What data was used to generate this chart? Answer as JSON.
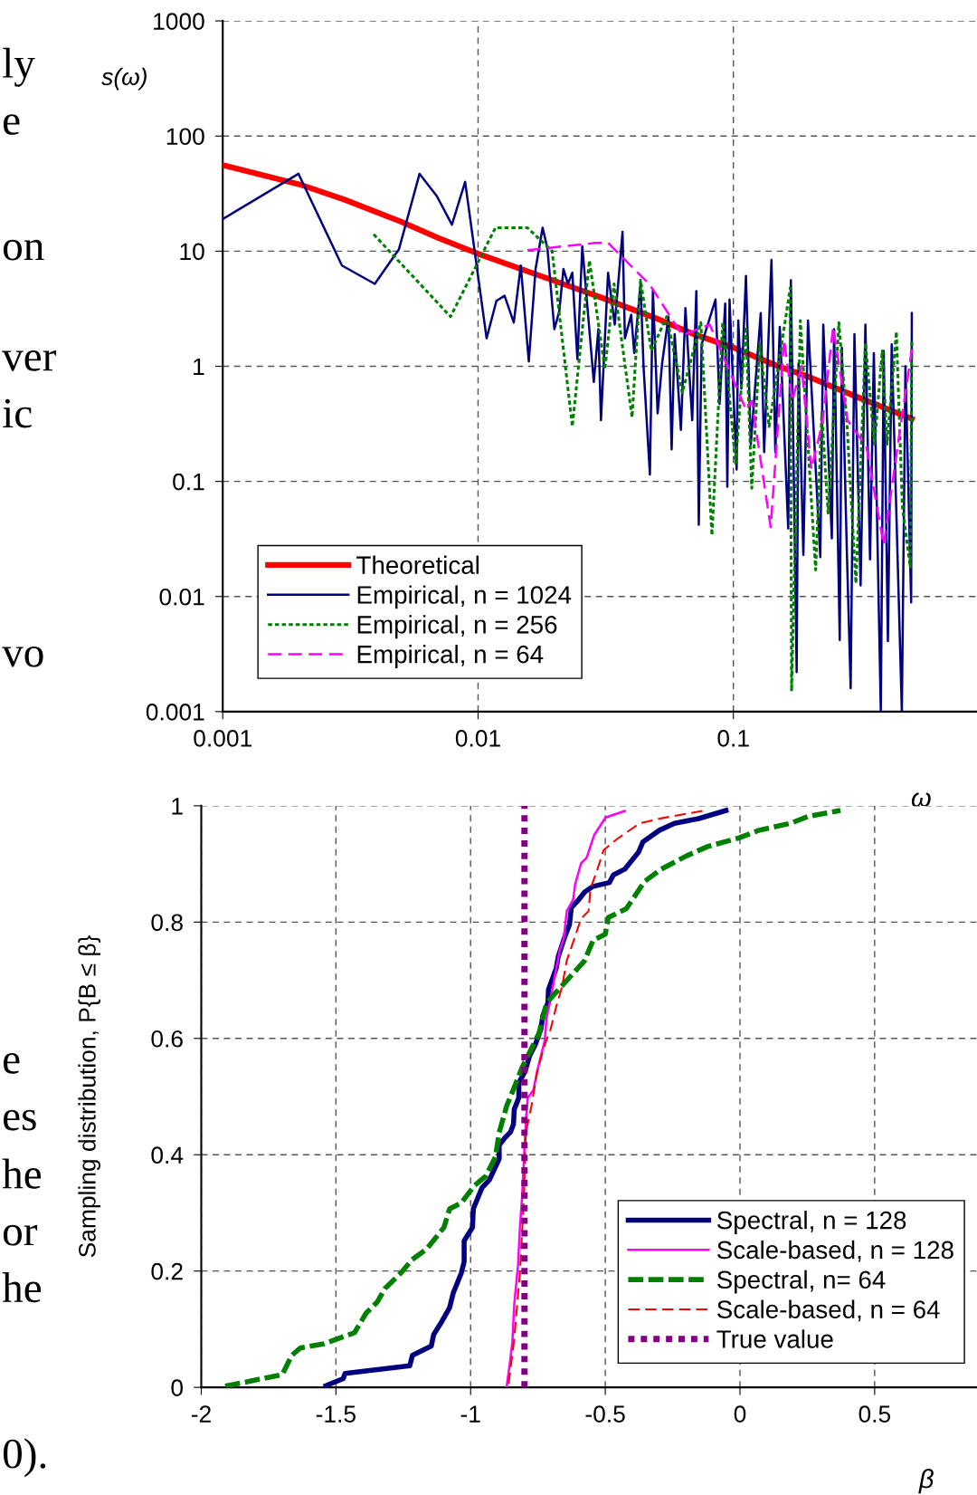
{
  "chart_data": [
    {
      "type": "line",
      "xlabel": "ω",
      "ylabel": "s(ω)",
      "log": "xy",
      "xlim": [
        0.001,
        0.9
      ],
      "ylim": [
        0.001,
        1000
      ],
      "xticks": [
        0.001,
        0.01,
        0.1
      ],
      "yticks": [
        0.001,
        0.01,
        0.1,
        1,
        10,
        100,
        1000
      ],
      "grid": true,
      "legend": "bottom left",
      "marker": "none",
      "annotations": [
        "ly",
        "e",
        "on",
        "ver",
        "ic",
        "vo"
      ],
      "series": [
        {
          "name": "Theoretical",
          "color": "#ff0000",
          "line_style": "solid",
          "x": [
            0.001,
            0.002,
            0.003,
            0.005,
            0.007,
            0.01,
            0.02,
            0.03,
            0.05,
            0.07,
            0.1,
            0.15,
            0.2,
            0.3,
            0.5
          ],
          "values": [
            56,
            38,
            28,
            18,
            13,
            9.5,
            5.5,
            4,
            2.6,
            1.9,
            1.45,
            1.0,
            0.8,
            0.55,
            0.35
          ]
        },
        {
          "name": "Empirical, n = 1024",
          "color": "#000080",
          "line_style": "solid",
          "x": [
            0.001,
            0.00198,
            0.00293,
            0.00394,
            0.0049,
            0.0059,
            0.0069,
            0.0079,
            0.0089,
            0.0108,
            0.0118,
            0.0127,
            0.0138,
            0.0147,
            0.0158,
            0.0168,
            0.0179,
            0.0187,
            0.0199,
            0.0208,
            0.0216,
            0.0225,
            0.0234,
            0.0245,
            0.0256,
            0.0284,
            0.0296,
            0.0303,
            0.0323,
            0.0343,
            0.0368,
            0.0376,
            0.0398,
            0.0409,
            0.0433,
            0.0445,
            0.0471,
            0.0484,
            0.0505,
            0.0526,
            0.0557,
            0.0573,
            0.0589,
            0.0623,
            0.0649,
            0.069,
            0.0716,
            0.0732,
            0.0751,
            0.0851,
            0.0883,
            0.0929,
            0.0947,
            0.0966,
            0.103,
            0.1045,
            0.1075,
            0.112,
            0.117,
            0.128,
            0.132,
            0.141,
            0.146,
            0.152,
            0.164,
            0.168,
            0.177,
            0.18,
            0.188,
            0.196,
            0.219,
            0.225,
            0.243,
            0.248,
            0.261,
            0.266,
            0.278,
            0.288,
            0.298,
            0.315,
            0.329,
            0.343,
            0.355,
            0.378,
            0.388,
            0.403,
            0.417,
            0.457,
            0.472,
            0.497,
            0.5
          ],
          "values": [
            19,
            47,
            7.5,
            5.2,
            10.4,
            47,
            30,
            17,
            40,
            1.75,
            3.7,
            4.1,
            2.4,
            7.5,
            1.1,
            7,
            16,
            10.5,
            2.1,
            3,
            7,
            5.2,
            6.5,
            1.15,
            11,
            0.73,
            2.1,
            0.34,
            6.5,
            2.3,
            14.7,
            1.75,
            2.8,
            1.3,
            5.2,
            0.97,
            0.115,
            4.6,
            0.39,
            1.06,
            2.7,
            0.19,
            1.9,
            0.28,
            3.2,
            0.34,
            4.5,
            0.042,
            1.55,
            3.8,
            0.47,
            3.5,
            0.09,
            3.8,
            0.127,
            2.5,
            0.64,
            6.1,
            0.21,
            2.9,
            0.18,
            8.4,
            0.18,
            2.2,
            0.039,
            5.6,
            0.0022,
            1.06,
            0.023,
            2.5,
            0.022,
            2.3,
            0.032,
            2.1,
            0.0042,
            1.45,
            0.027,
            0.0016,
            1.9,
            0.0125,
            2.3,
            0.021,
            1.3,
            0.001,
            1.36,
            0.0041,
            1.55,
            0.001,
            1.0,
            0.0089,
            2.9
          ]
        },
        {
          "name": "Empirical, n = 256",
          "color": "#008000",
          "line_style": "dotted",
          "x": [
            0.0039,
            0.0078,
            0.0117,
            0.0156,
            0.0195,
            0.0234,
            0.0273,
            0.0314,
            0.0341,
            0.0401,
            0.0433,
            0.0477,
            0.0548,
            0.0631,
            0.0746,
            0.0824,
            0.0908,
            0.102,
            0.112,
            0.118,
            0.127,
            0.138,
            0.167,
            0.169,
            0.183,
            0.21,
            0.222,
            0.235,
            0.259,
            0.278,
            0.302,
            0.329,
            0.357,
            0.383,
            0.4,
            0.435,
            0.459,
            0.493,
            0.5
          ],
          "values": [
            14,
            2.7,
            16,
            16,
            10,
            0.3,
            8.3,
            0.94,
            5.2,
            0.36,
            5.6,
            1.36,
            2.7,
            0.59,
            2.4,
            0.034,
            2.4,
            0.144,
            2.2,
            0.087,
            1.55,
            0.3,
            4.8,
            0.0015,
            2.5,
            0.017,
            0.39,
            0.053,
            2.4,
            0.34,
            0.013,
            1.6,
            0.21,
            1.36,
            0.21,
            2.0,
            0.06,
            0.018,
            1.64
          ]
        },
        {
          "name": "Empirical, n = 64",
          "color": "#ff00ff",
          "line_style": "dashed",
          "x": [
            0.0156,
            0.0289,
            0.0323,
            0.0471,
            0.0631,
            0.0808,
            0.112,
            0.118,
            0.14,
            0.158,
            0.17,
            0.185,
            0.202,
            0.223,
            0.246,
            0.28,
            0.332,
            0.388,
            0.441,
            0.5
          ],
          "values": [
            10.2,
            11.8,
            11.8,
            5.1,
            1.86,
            2.3,
            0.42,
            0.5,
            0.04,
            1.7,
            0.5,
            1.0,
            0.127,
            0.32,
            2.2,
            0.34,
            0.2,
            0.028,
            0.21,
            1.4
          ]
        }
      ]
    },
    {
      "type": "line",
      "xlabel": "β",
      "ylabel": "Sampling distribution, P{B ≤ β}",
      "xlim": [
        -2,
        0.88
      ],
      "ylim": [
        0,
        1
      ],
      "xticks": [
        -2,
        -1.5,
        -1,
        -0.5,
        0,
        0.5
      ],
      "yticks": [
        0,
        0.2,
        0.4,
        0.6,
        0.8,
        1
      ],
      "grid": true,
      "legend": "bottom right",
      "marker": "none",
      "annotations": [
        "e",
        "es",
        "he",
        "or",
        "he",
        "0)."
      ],
      "series": [
        {
          "name": "Spectral, n = 128",
          "color": "#000080",
          "line_style": "solid",
          "x": [
            -1.537,
            -1.473,
            -1.466,
            -1.226,
            -1.216,
            -1.146,
            -1.137,
            -1.106,
            -1.078,
            -1.064,
            -1.035,
            -1.024,
            -1.024,
            -0.993,
            -0.99,
            -0.958,
            -0.93,
            -0.894,
            -0.894,
            -0.873,
            -0.852,
            -0.841,
            -0.838,
            -0.821,
            -0.821,
            -0.798,
            -0.781,
            -0.76,
            -0.739,
            -0.732,
            -0.713,
            -0.711,
            -0.682,
            -0.675,
            -0.654,
            -0.633,
            -0.626,
            -0.598,
            -0.576,
            -0.548,
            -0.485,
            -0.47,
            -0.428,
            -0.377,
            -0.36,
            -0.299,
            -0.243,
            -0.153,
            -0.052
          ],
          "values": [
            0.003,
            0.015,
            0.024,
            0.037,
            0.055,
            0.071,
            0.091,
            0.114,
            0.137,
            0.163,
            0.196,
            0.216,
            0.252,
            0.275,
            0.307,
            0.343,
            0.357,
            0.393,
            0.416,
            0.429,
            0.439,
            0.452,
            0.478,
            0.498,
            0.524,
            0.543,
            0.57,
            0.589,
            0.616,
            0.639,
            0.661,
            0.684,
            0.721,
            0.74,
            0.77,
            0.796,
            0.825,
            0.839,
            0.852,
            0.861,
            0.868,
            0.881,
            0.891,
            0.92,
            0.938,
            0.958,
            0.97,
            0.978,
            0.992
          ]
        },
        {
          "name": "Scale-based, n = 128",
          "color": "#ff00ff",
          "line_style": "solid",
          "x": [
            -0.866,
            -0.855,
            -0.845,
            -0.838,
            -0.824,
            -0.817,
            -0.809,
            -0.802,
            -0.795,
            -0.788,
            -0.767,
            -0.753,
            -0.739,
            -0.725,
            -0.718,
            -0.703,
            -0.682,
            -0.668,
            -0.654,
            -0.643,
            -0.619,
            -0.612,
            -0.59,
            -0.569,
            -0.541,
            -0.499,
            -0.428
          ],
          "values": [
            0.002,
            0.039,
            0.078,
            0.143,
            0.209,
            0.275,
            0.327,
            0.393,
            0.458,
            0.498,
            0.511,
            0.543,
            0.57,
            0.596,
            0.635,
            0.668,
            0.721,
            0.753,
            0.773,
            0.819,
            0.839,
            0.865,
            0.901,
            0.911,
            0.95,
            0.98,
            0.991
          ]
        },
        {
          "name": "Spectral, n= 64",
          "color": "#008000",
          "line_style": "dashed",
          "x": [
            -1.911,
            -1.699,
            -1.664,
            -1.631,
            -1.544,
            -1.431,
            -1.389,
            -1.346,
            -1.318,
            -1.254,
            -1.219,
            -1.163,
            -1.099,
            -1.078,
            -1.035,
            -0.986,
            -0.944,
            -0.908,
            -0.894,
            -0.866,
            -0.831,
            -0.809,
            -0.781,
            -0.746,
            -0.718,
            -0.654,
            -0.578,
            -0.545,
            -0.5,
            -0.489,
            -0.422,
            -0.354,
            -0.293,
            -0.198,
            -0.12,
            -0.002,
            0.071,
            0.188,
            0.255,
            0.373
          ],
          "values": [
            0.002,
            0.022,
            0.055,
            0.068,
            0.075,
            0.094,
            0.127,
            0.147,
            0.17,
            0.199,
            0.219,
            0.238,
            0.275,
            0.307,
            0.317,
            0.347,
            0.363,
            0.396,
            0.438,
            0.484,
            0.524,
            0.55,
            0.576,
            0.609,
            0.661,
            0.694,
            0.733,
            0.769,
            0.779,
            0.808,
            0.823,
            0.87,
            0.891,
            0.914,
            0.93,
            0.945,
            0.958,
            0.97,
            0.982,
            0.992
          ]
        },
        {
          "name": "Scale-based, n = 64",
          "color": "#ff0000",
          "line_style": "dashed",
          "x": [
            -0.859,
            -0.838,
            -0.817,
            -0.802,
            -0.795,
            -0.774,
            -0.753,
            -0.725,
            -0.703,
            -0.682,
            -0.661,
            -0.643,
            -0.619,
            -0.59,
            -0.562,
            -0.555,
            -0.534,
            -0.506,
            -0.456,
            -0.372,
            -0.287,
            -0.131
          ],
          "values": [
            0.006,
            0.084,
            0.196,
            0.327,
            0.438,
            0.484,
            0.543,
            0.589,
            0.616,
            0.655,
            0.688,
            0.734,
            0.766,
            0.806,
            0.819,
            0.858,
            0.884,
            0.924,
            0.943,
            0.97,
            0.979,
            0.992
          ]
        },
        {
          "name": "True value",
          "color": "#800080",
          "line_style": "dotted",
          "x": [
            -0.8,
            -0.8
          ],
          "values": [
            0,
            1
          ]
        }
      ]
    }
  ]
}
